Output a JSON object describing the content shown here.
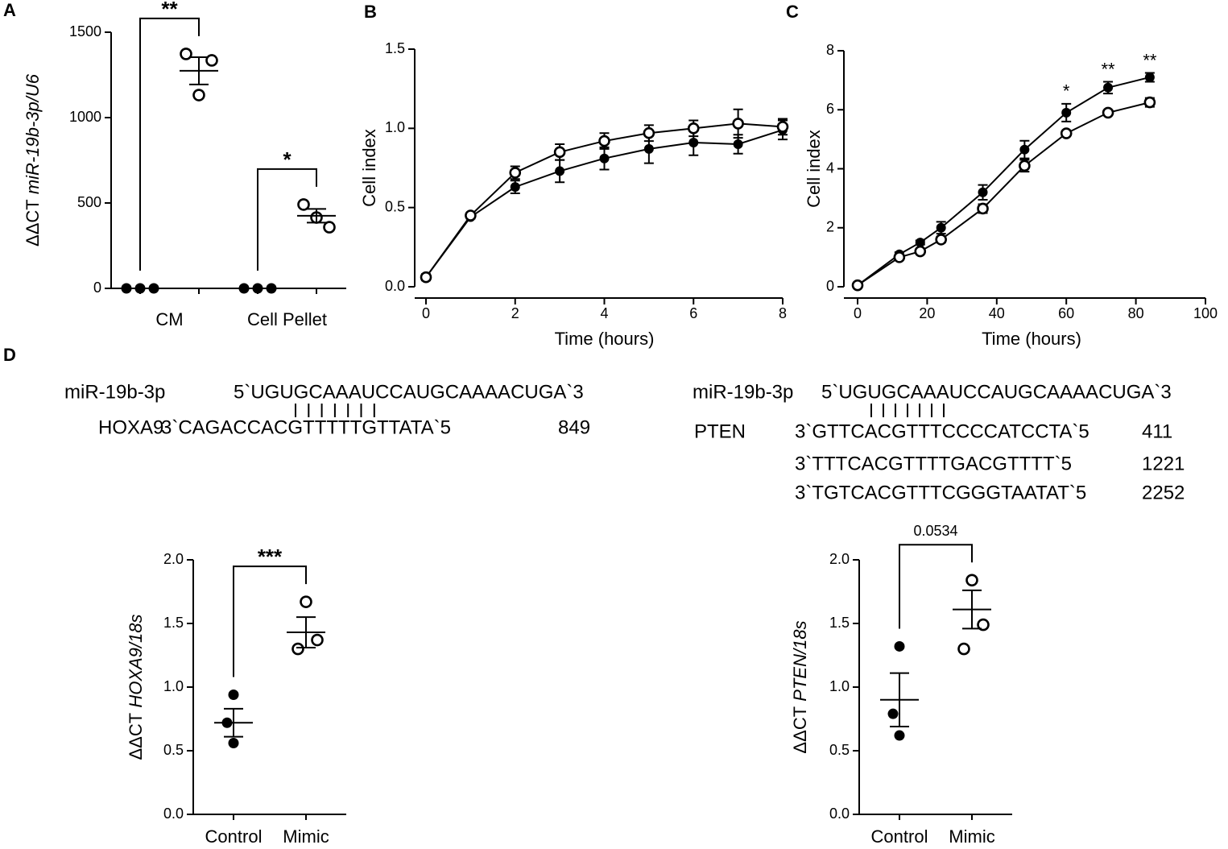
{
  "chart_data": [
    {
      "type": "dot",
      "panel": "A",
      "ylabel": "ΔΔCT",
      "ylabel_italic": "miR-19b-3p/U6",
      "categories": [
        "CM",
        "Cell Pellet"
      ],
      "series": [
        {
          "style": "filled",
          "values": [
            [
              0,
              0,
              0
            ],
            [
              0,
              0,
              0
            ]
          ],
          "mean": [
            0,
            0
          ],
          "sem": [
            0,
            0
          ]
        },
        {
          "style": "open",
          "values": [
            [
              1373,
              1335,
              1132
            ],
            [
              491,
              358,
              415
            ]
          ],
          "mean": [
            1274,
            425
          ],
          "sem": [
            80,
            40
          ]
        }
      ],
      "ylim": [
        0,
        1500
      ],
      "yticks": [
        0,
        500,
        1000,
        1500
      ],
      "annotations": [
        {
          "text": "**"
        },
        {
          "text": "*"
        }
      ]
    },
    {
      "type": "line",
      "panel": "B",
      "xlabel": "Time (hours)",
      "ylabel": "Cell index",
      "x": [
        0,
        1,
        2,
        3,
        4,
        5,
        6,
        7,
        8
      ],
      "series": [
        {
          "style": "filled",
          "values": [
            0.06,
            0.44,
            0.63,
            0.73,
            0.81,
            0.87,
            0.91,
            0.9,
            0.99
          ],
          "errors": [
            0.02,
            0.01,
            0.04,
            0.07,
            0.07,
            0.09,
            0.08,
            0.06,
            0.06
          ]
        },
        {
          "style": "open",
          "values": [
            0.06,
            0.45,
            0.72,
            0.85,
            0.92,
            0.97,
            1.0,
            1.03,
            1.01
          ],
          "errors": [
            0.01,
            0.01,
            0.04,
            0.05,
            0.05,
            0.05,
            0.05,
            0.09,
            0.05
          ]
        }
      ],
      "xlim": [
        0,
        8
      ],
      "xticks": [
        0,
        2,
        4,
        6,
        8
      ],
      "ylim": [
        0,
        1.5
      ],
      "yticks": [
        {
          "value": 0,
          "label": "0.0"
        },
        0.5,
        {
          "value": 1,
          "label": "1.0"
        },
        1.5
      ]
    },
    {
      "type": "line",
      "panel": "C",
      "xlabel": "Time (hours)",
      "ylabel": "Cell index",
      "x": [
        0,
        12,
        18,
        24,
        36,
        48,
        60,
        72,
        84
      ],
      "series": [
        {
          "style": "filled",
          "values": [
            0.05,
            1.1,
            1.5,
            2.0,
            3.2,
            4.65,
            5.9,
            6.75,
            7.1
          ],
          "errors": [
            0.05,
            0.07,
            0.07,
            0.2,
            0.25,
            0.3,
            0.3,
            0.2,
            0.15
          ]
        },
        {
          "style": "open",
          "values": [
            0.05,
            1.0,
            1.2,
            1.6,
            2.65,
            4.1,
            5.2,
            5.9,
            6.25
          ],
          "errors": [
            0.05,
            0.07,
            0.07,
            0.1,
            0.15,
            0.2,
            0.05,
            0.05,
            0.15
          ]
        }
      ],
      "xlim": [
        0,
        100
      ],
      "xticks": [
        0,
        20,
        40,
        60,
        80,
        100
      ],
      "ylim": [
        0,
        8
      ],
      "yticks": [
        0,
        2,
        4,
        6,
        8
      ],
      "annotations": [
        {
          "text": "*",
          "x": 60
        },
        {
          "text": "**",
          "x": 72
        },
        {
          "text": "**",
          "x": 84
        }
      ]
    },
    {
      "type": "dot",
      "panel": "D",
      "ylabel": "ΔΔCT",
      "ylabel_italic": "HOXA9/18s",
      "categories": [
        "Control",
        "Mimic"
      ],
      "styles": [
        "filled",
        "open"
      ],
      "values": [
        [
          0.94,
          0.72,
          0.56
        ],
        [
          1.67,
          1.37,
          1.3
        ]
      ],
      "mean": [
        0.72,
        1.43
      ],
      "sem": [
        0.11,
        0.12
      ],
      "ylim": [
        0,
        2
      ],
      "yticks": [
        {
          "value": 0,
          "label": "0.0"
        },
        0.5,
        {
          "value": 1,
          "label": "1.0"
        },
        1.5,
        {
          "value": 2,
          "label": "2.0"
        }
      ],
      "annotations": [
        {
          "text": "***"
        }
      ]
    },
    {
      "type": "dot",
      "ylabel": "ΔΔCT",
      "ylabel_italic": "PTEN/18s",
      "categories": [
        "Control",
        "Mimic"
      ],
      "styles": [
        "filled",
        "open"
      ],
      "values": [
        [
          1.32,
          0.79,
          0.62
        ],
        [
          1.84,
          1.49,
          1.3
        ]
      ],
      "mean": [
        0.9,
        1.61
      ],
      "sem": [
        0.21,
        0.15
      ],
      "ylim": [
        0,
        2
      ],
      "yticks": [
        {
          "value": 0,
          "label": "0.0"
        },
        0.5,
        {
          "value": 1,
          "label": "1.0"
        },
        1.5,
        {
          "value": 2,
          "label": "2.0"
        }
      ],
      "annotations": [
        {
          "text": "0.0534"
        }
      ]
    }
  ],
  "alignments": {
    "left": {
      "mirna_label": "miR-19b-3p",
      "mirna_seq": "5`UGUGCAAAUCCAUGCAAAACUGA`3",
      "target_label": "HOXA9",
      "target_seq": "3`CAGACCACGTTTTTGTTATA`5",
      "site": 849
    },
    "right": {
      "mirna_label": "miR-19b-3p",
      "mirna_seq": "5`UGUGCAAAUCCAUGCAAAACUGA`3",
      "target_label": "PTEN",
      "sites": [
        {
          "seq": "3`GTTCACGTTTCCCCATCCTA`5",
          "pos": 411
        },
        {
          "seq": "3`TTTCACGTTTTGACGTTTT`5",
          "pos": 1221
        },
        {
          "seq": "3`TGTCACGTTTCGGGTAATAT`5",
          "pos": 2252
        }
      ]
    }
  }
}
